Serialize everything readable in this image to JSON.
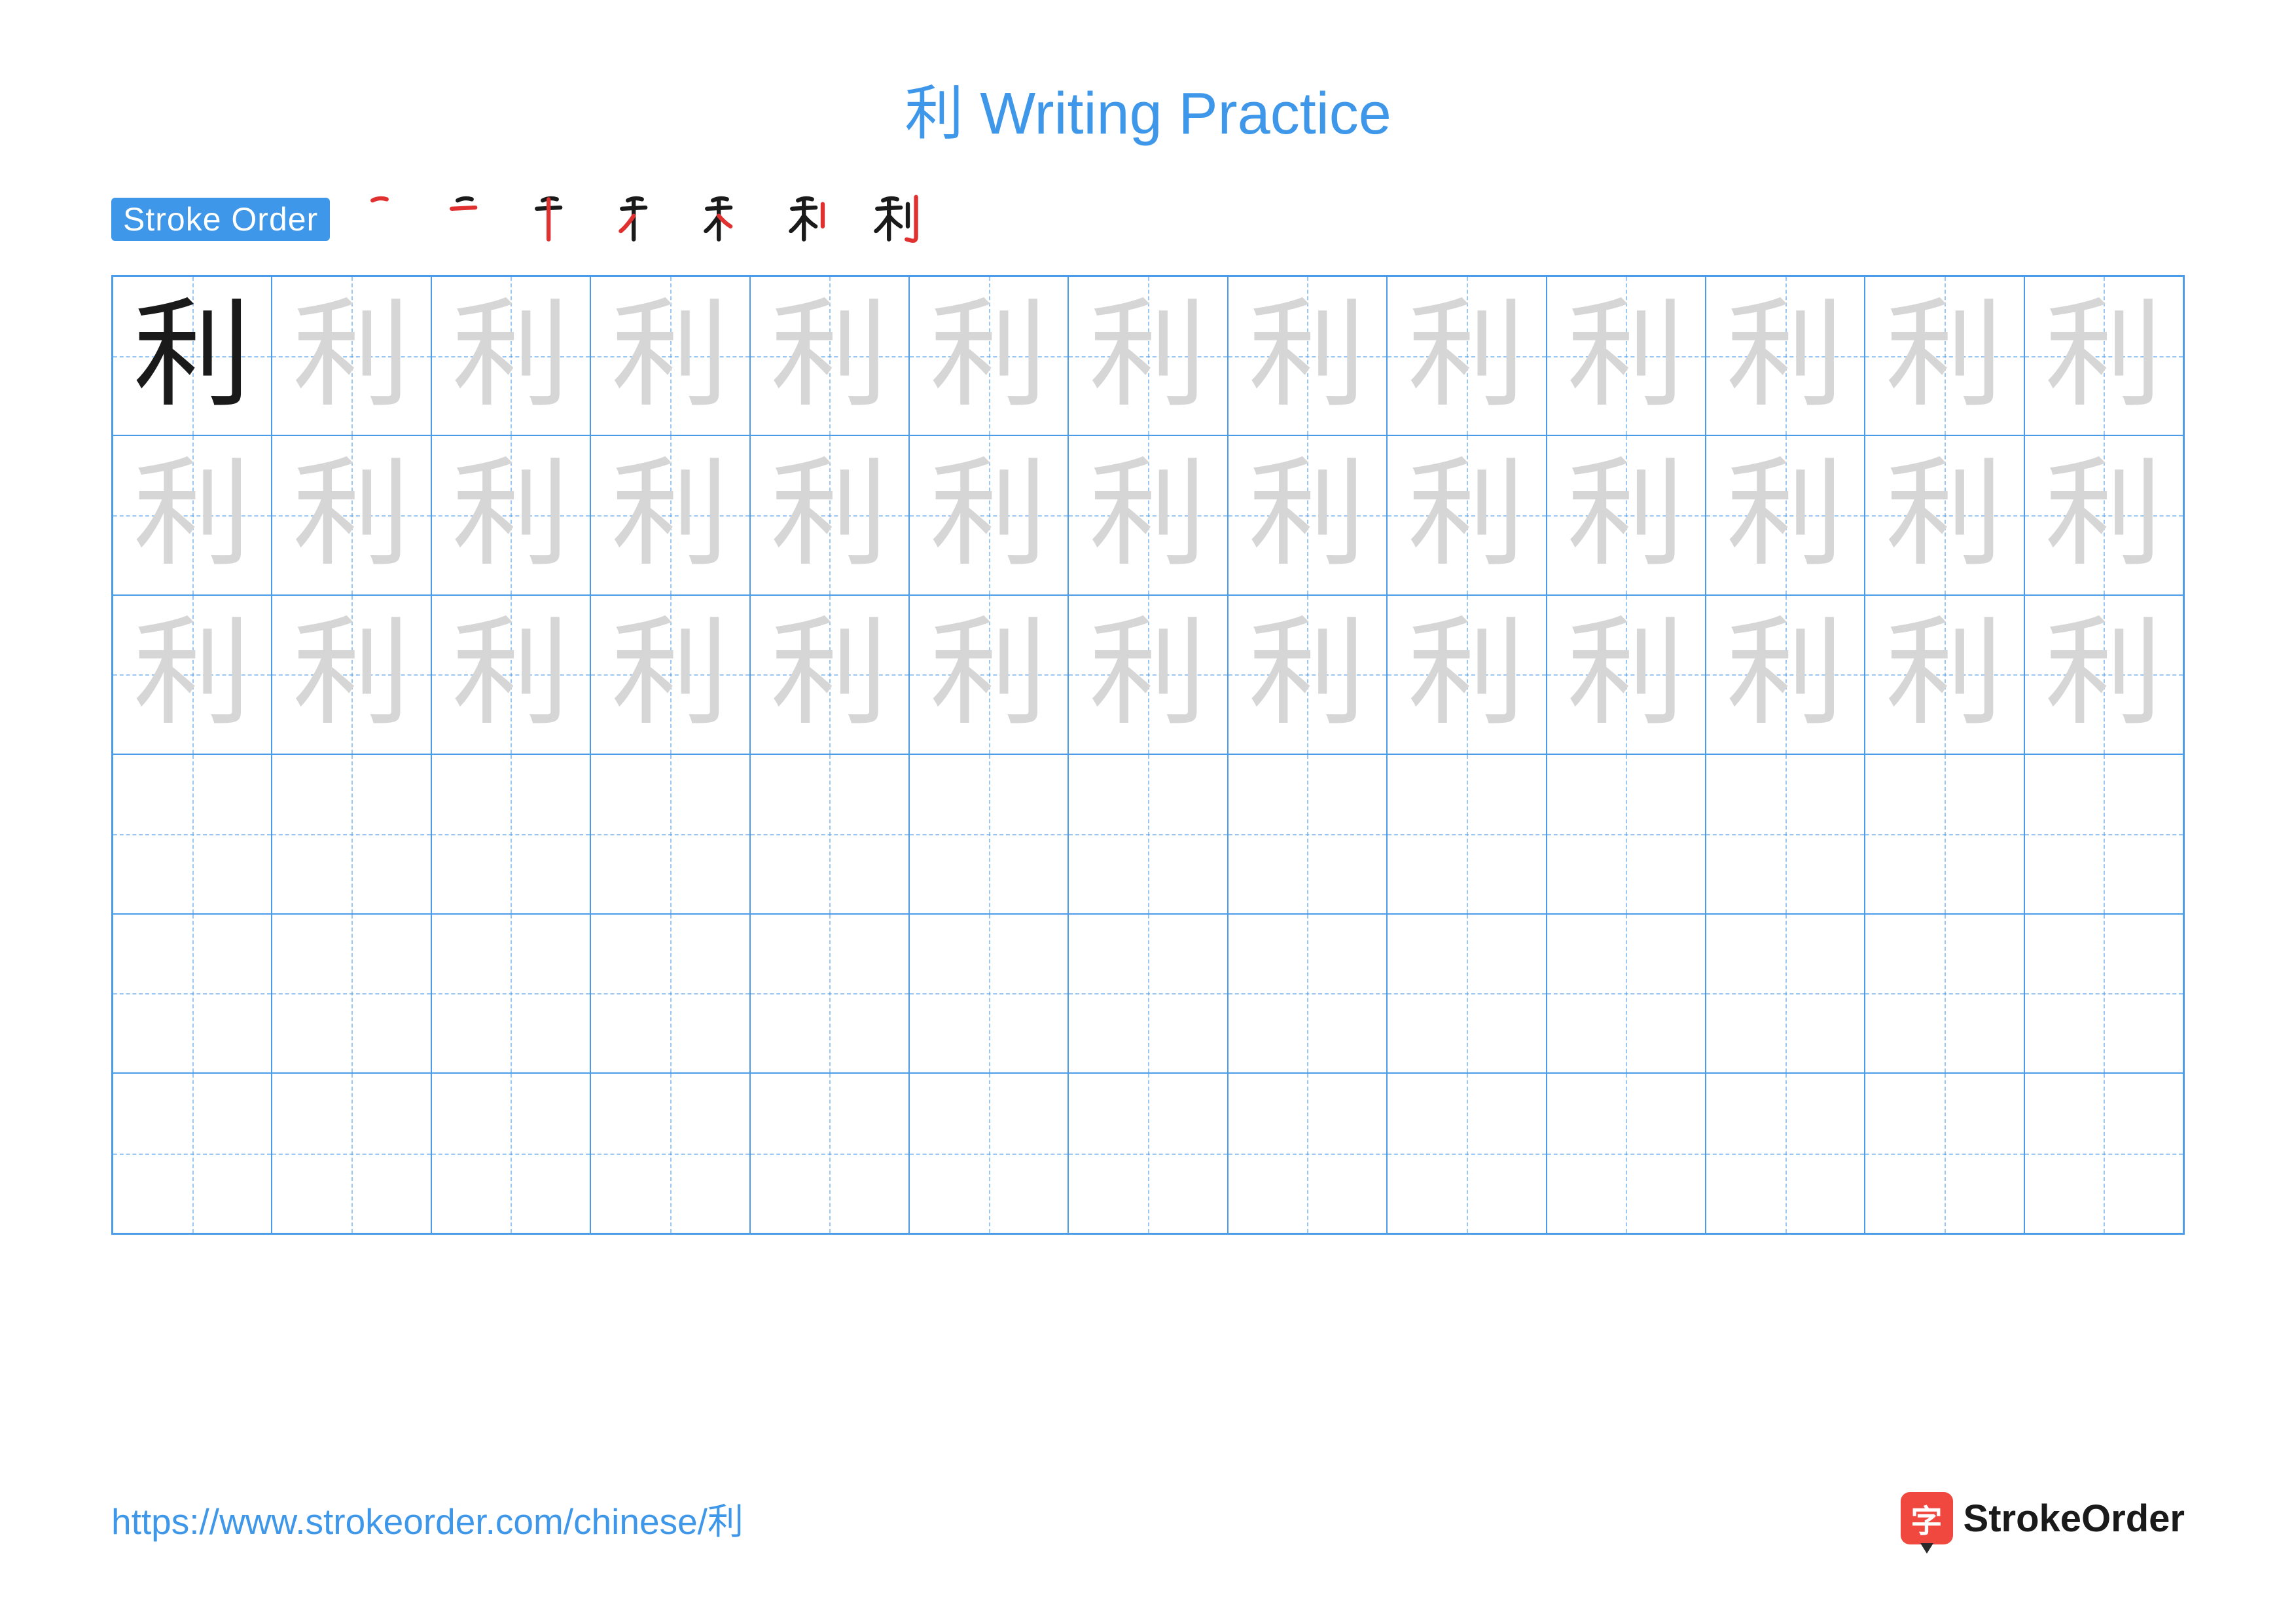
{
  "colors": {
    "title": "#3e97e8",
    "badge_bg": "#3e97e8",
    "badge_text": "#ffffff",
    "grid_border": "#4a9be8",
    "cell_guide": "#4a9be8",
    "char_solid": "#1a1a1a",
    "char_faded": "#d6d6d6",
    "stroke_done": "#1a1a1a",
    "stroke_current": "#e03030",
    "url": "#3e97e8",
    "logo_badge": "#f0483e",
    "logo_text": "#1a1a1a"
  },
  "title": "利 Writing Practice",
  "stroke_label": "Stroke Order",
  "character": "利",
  "stroke_count": 7,
  "grid": {
    "rows": 6,
    "cols": 13,
    "faded_rows": 3,
    "solid_cells": 1
  },
  "footer": {
    "url": "https://www.strokeorder.com/chinese/利",
    "logo_char": "字",
    "logo_text": "StrokeOrder"
  },
  "stroke_paths": [
    "M28 18 Q40 12 52 16",
    "M18 32 L58 30",
    "M38 16 L38 84",
    "M38 44 Q26 62 16 70",
    "M38 44 Q48 56 58 62",
    "M70 24 L70 62",
    "M84 12 L84 80 Q84 88 76 86 L68 84"
  ]
}
